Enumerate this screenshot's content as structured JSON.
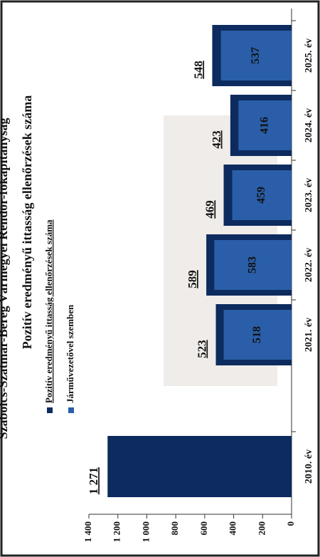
{
  "header": "Szabolcs-Szatmár-Bereg Vármegyei Rendőr-főkapitányság",
  "chart_data": {
    "type": "bar",
    "title": "Pozitív eredményű ittasság ellenőrzések száma",
    "categories": [
      "2010. év",
      "2021. év",
      "2022. év",
      "2023. év",
      "2024. év",
      "2025. év"
    ],
    "series": [
      {
        "name": "Pozitív eredményű ittasság ellenőrzések száma",
        "color": "#0d2b5e",
        "values": [
          1271,
          523,
          589,
          469,
          423,
          548
        ],
        "value_labels": [
          "1 271",
          "523",
          "589",
          "469",
          "423",
          "548"
        ]
      },
      {
        "name": "Járművezetővel szemben",
        "color": "#2a5ea8",
        "values": [
          null,
          518,
          583,
          459,
          416,
          537
        ]
      }
    ],
    "ylim": [
      0,
      1400
    ],
    "yticks": [
      0,
      200,
      400,
      600,
      800,
      {
        "value": 1000,
        "label": "1 000"
      },
      {
        "value": 1200,
        "label": "1 200"
      },
      {
        "value": 1400,
        "label": "1 400"
      }
    ],
    "rotation": -90
  }
}
